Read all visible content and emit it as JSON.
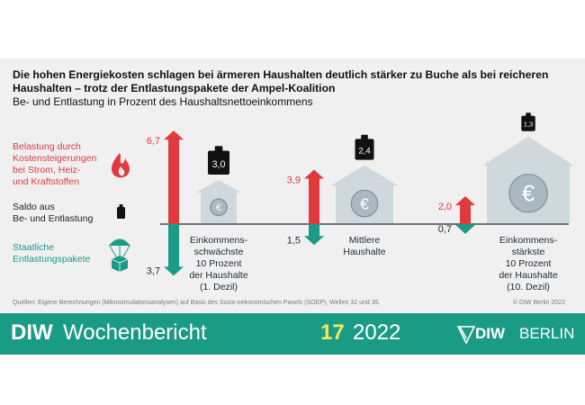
{
  "header": {
    "title_line1": "Die hohen Energiekosten schlagen bei ärmeren Haushalten deutlich stärker zu Buche als bei reicheren",
    "title_line2": "Haushalten – trotz der Entlastungspakete der Ampel-Koalition",
    "subtitle": "Be- und Entlastung in Prozent des Haushaltsnettoeinkommens"
  },
  "legend": {
    "burden": [
      "Belastung durch",
      "Kostensteigerungen",
      "bei Strom, Heiz-",
      "und Kraftstoffen"
    ],
    "balance": [
      "Saldo aus",
      "Be- und Entlastung"
    ],
    "relief": [
      "Staatliche",
      "Entlastungspakete"
    ]
  },
  "colors": {
    "burden": "#e03a3e",
    "relief": "#1a9b86",
    "house": "#cfd8dd",
    "weight": "#111111",
    "panel": "#f0f0f0",
    "footer": "#1a9b86"
  },
  "chart_data": {
    "type": "bar",
    "categories": [
      [
        "Einkommens-",
        "schwächste",
        "10 Prozent",
        "der Haushalte",
        "(1. Dezil)"
      ],
      [
        "Mittlere",
        "Haushalte"
      ],
      [
        "Einkommens-",
        "stärkste",
        "10 Prozent",
        "der Haushalte",
        "(10. Dezil)"
      ]
    ],
    "burden": [
      6.7,
      3.9,
      2.0
    ],
    "relief": [
      3.7,
      1.5,
      0.7
    ],
    "balance": [
      3.0,
      2.4,
      1.3
    ],
    "burden_labels": [
      "6,7",
      "3,9",
      "2,0"
    ],
    "relief_labels": [
      "3,7",
      "1,5",
      "0,7"
    ],
    "balance_labels": [
      "3,0",
      "2,4",
      "1,3"
    ]
  },
  "source": "Quellen: Eigene Berechnungen (Mikrosimulationsanalysen) auf Basis des Sozio-oekonomischen Panels (SOEP), Wellen 32 und 35.",
  "copyright": "© DIW Berlin 2022",
  "footer": {
    "brand": "DIW",
    "publication": "Wochenbericht",
    "issue": "17",
    "year": "2022",
    "logo_diw": "DIW",
    "logo_berlin": "BERLIN"
  }
}
